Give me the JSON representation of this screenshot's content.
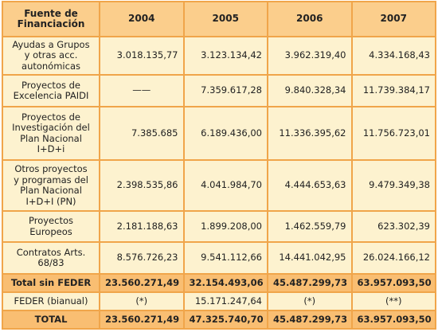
{
  "table": {
    "header": [
      "Fuente de\nFinanciación",
      "2004",
      "2005",
      "2006",
      "2007"
    ],
    "rows": [
      [
        "Ayudas a Grupos\ny otras acc.\nautonómicas",
        "3.018.135,77",
        "3.123.134,42",
        "3.962.319,40",
        "4.334.168,43"
      ],
      [
        "Proyectos de\nExcelencia PAIDI",
        "——",
        "7.359.617,28",
        "9.840.328,34",
        "11.739.384,17"
      ],
      [
        "Proyectos de\nInvestigación del\nPlan Nacional\nI+D+i",
        "7.385.685",
        "6.189.436,00",
        "11.336.395,62",
        "11.756.723,01"
      ],
      [
        "Otros proyectos\ny programas del\nPlan Nacional\nI+D+I (PN)",
        "2.398.535,86",
        "4.041.984,70",
        "4.444.653,63",
        "9.479.349,38"
      ],
      [
        "Proyectos\nEuropeos",
        "2.181.188,63",
        "1.899.208,00",
        "1.462.559,79",
        "623.302,39"
      ],
      [
        "Contratos Arts.\n68/83",
        "8.576.726,23",
        "9.541.112,66",
        "14.441.042,95",
        "26.024.166,12"
      ],
      [
        "Total sin FEDER",
        "23.560.271,49",
        "32.154.493,06",
        "45.487.299,73",
        "63.957.093,50"
      ],
      [
        "FEDER (bianual)",
        "(*)",
        "15.171.247,64",
        "(*)",
        "(**)"
      ],
      [
        "TOTAL",
        "23.560.271,49",
        "47.325.740,70",
        "45.487.299,73",
        "63.957.093,50"
      ]
    ]
  }
}
